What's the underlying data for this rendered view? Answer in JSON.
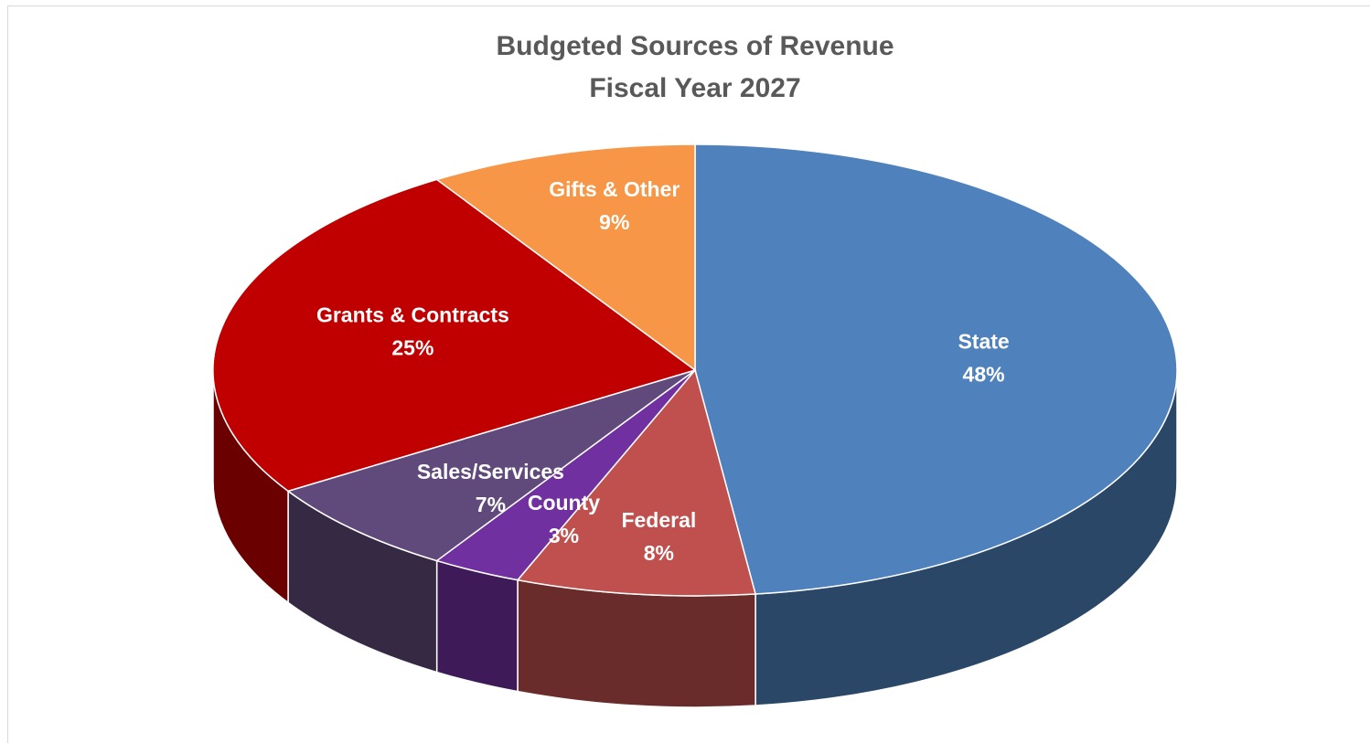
{
  "chart_data": {
    "type": "pie",
    "title": "Budgeted Sources of Revenue",
    "subtitle": "Fiscal Year 2027",
    "categories": [
      "State",
      "Federal",
      "County",
      "Sales/Services",
      "Grants & Contracts",
      "Gifts & Other"
    ],
    "values": [
      48,
      8,
      3,
      7,
      25,
      9
    ],
    "value_labels": [
      "48%",
      "8%",
      "3%",
      "7%",
      "25%",
      "9%"
    ],
    "colors": [
      "#4f81bd",
      "#c0504d",
      "#7030a0",
      "#604a7b",
      "#c00000",
      "#f79646"
    ]
  }
}
